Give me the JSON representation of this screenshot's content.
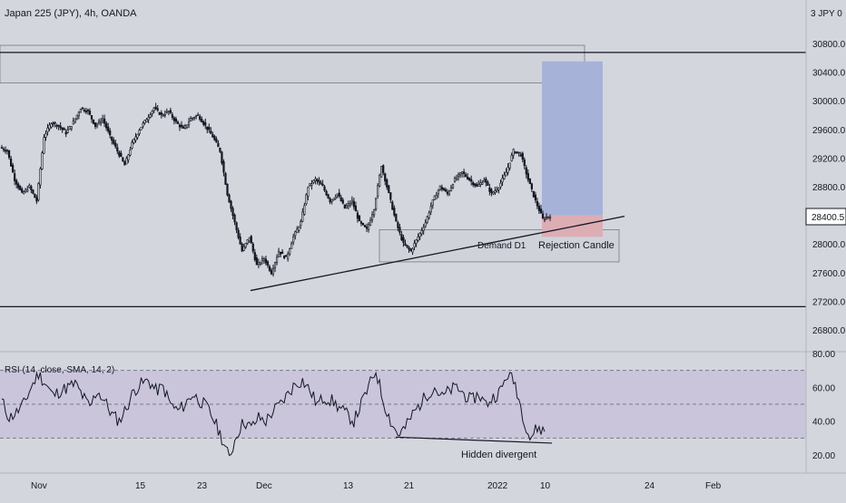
{
  "title": "Japan 225 (JPY), 4h, OANDA",
  "currency_label": "3 JPY 0",
  "last_price": "28400.5",
  "annotations": {
    "demand": "Demand D1",
    "rejection": "Rejection Candle",
    "divergence": "Hidden divergent"
  },
  "colors": {
    "background": "#d3d6dd",
    "rsi_band": "#c9c3da",
    "target_zone": "#a6b2d8",
    "stop_zone": "#ddadb4",
    "line": "#131722",
    "candle": "#131722"
  },
  "chart_data": [
    {
      "type": "candlestick",
      "title": "Japan 225 (JPY), 4h, OANDA",
      "x_ticks": [
        "Nov",
        "15",
        "23",
        "Dec",
        "13",
        "21",
        "2022",
        "10",
        "24",
        "Feb"
      ],
      "y_ticks": [
        "30800.0",
        "30400.0",
        "30000.0",
        "29600.0",
        "29200.0",
        "28800.0",
        "28000.0",
        "27600.0",
        "27200.0",
        "26800.0"
      ],
      "ylim": [
        26500,
        31300
      ],
      "close_path": [
        29300,
        28900,
        28700,
        28800,
        28600,
        29500,
        29700,
        29650,
        29550,
        29700,
        29900,
        29850,
        29650,
        29750,
        29500,
        29300,
        29100,
        29400,
        29600,
        29750,
        29900,
        29800,
        29850,
        29700,
        29600,
        29750,
        29800,
        29650,
        29500,
        29300,
        28700,
        28300,
        27900,
        28100,
        27700,
        27800,
        27600,
        27900,
        27800,
        28100,
        28300,
        28800,
        28900,
        28800,
        28600,
        28700,
        28500,
        28600,
        28300,
        28200,
        28500,
        29100,
        28700,
        28300,
        28000,
        27900,
        28100,
        28300,
        28600,
        28800,
        28700,
        28900,
        29000,
        28900,
        28800,
        28900,
        28700,
        28800,
        29000,
        29300,
        29250,
        28900,
        28600,
        28350,
        28400
      ],
      "hlines": [
        30700,
        27150
      ],
      "zones": [
        {
          "from_price": 30700,
          "to_price": 30300
        },
        {
          "from_price": 28200,
          "to_price": 27750,
          "label": "Demand D1"
        }
      ],
      "trendline": {
        "from": [
          27350
        ],
        "to": [
          28450
        ]
      },
      "position_entry": 28400.5,
      "position_target": 30550,
      "position_stop": 28100
    },
    {
      "type": "line",
      "title": "RSI (14, close, SMA, 14, 2)",
      "y_ticks": [
        "80.00",
        "60.00",
        "40.00",
        "20.00"
      ],
      "ylim": [
        10,
        82
      ],
      "band": [
        30,
        70
      ],
      "mid": 50,
      "values": [
        52,
        42,
        45,
        50,
        60,
        68,
        62,
        55,
        58,
        60,
        62,
        55,
        48,
        58,
        52,
        44,
        40,
        48,
        58,
        62,
        64,
        58,
        60,
        50,
        46,
        50,
        56,
        52,
        48,
        40,
        30,
        18,
        32,
        40,
        36,
        42,
        40,
        46,
        50,
        56,
        62,
        64,
        58,
        50,
        54,
        52,
        48,
        44,
        40,
        50,
        60,
        70,
        52,
        40,
        32,
        36,
        44,
        50,
        56,
        60,
        54,
        58,
        60,
        56,
        52,
        56,
        50,
        54,
        58,
        68,
        62,
        44,
        30,
        36,
        34
      ],
      "divergence_line": {
        "from": 30,
        "to": 27
      }
    }
  ]
}
